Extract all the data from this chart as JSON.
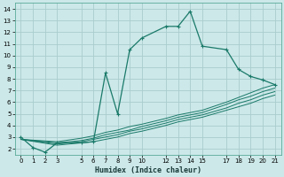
{
  "bg_color": "#cce8e8",
  "grid_color": "#aacccc",
  "line_color": "#1a7a6a",
  "xlabel": "Humidex (Indice chaleur)",
  "xlim": [
    -0.5,
    21.5
  ],
  "ylim": [
    1.5,
    14.5
  ],
  "xticks": [
    0,
    1,
    2,
    3,
    5,
    6,
    7,
    8,
    9,
    10,
    12,
    13,
    14,
    15,
    17,
    18,
    19,
    20,
    21
  ],
  "yticks": [
    2,
    3,
    4,
    5,
    6,
    7,
    8,
    9,
    10,
    11,
    12,
    13,
    14
  ],
  "main_line": {
    "x": [
      0,
      1,
      2,
      3,
      5,
      6,
      7,
      8,
      9,
      10,
      12,
      13,
      14,
      15,
      17,
      18,
      19,
      20,
      21
    ],
    "y": [
      3.0,
      2.1,
      1.7,
      2.5,
      2.5,
      2.6,
      8.5,
      5.0,
      10.5,
      11.5,
      12.5,
      12.5,
      13.8,
      10.8,
      10.5,
      8.8,
      8.2,
      7.9,
      7.5
    ]
  },
  "linear_lines": [
    {
      "x": [
        0,
        3,
        5,
        6,
        7,
        8,
        9,
        10,
        12,
        13,
        14,
        15,
        17,
        18,
        19,
        20,
        21
      ],
      "y": [
        2.8,
        2.6,
        2.9,
        3.1,
        3.4,
        3.6,
        3.9,
        4.1,
        4.6,
        4.9,
        5.1,
        5.3,
        6.0,
        6.4,
        6.8,
        7.2,
        7.5
      ]
    },
    {
      "x": [
        0,
        3,
        5,
        6,
        7,
        8,
        9,
        10,
        12,
        13,
        14,
        15,
        17,
        18,
        19,
        20,
        21
      ],
      "y": [
        2.8,
        2.5,
        2.7,
        2.9,
        3.2,
        3.4,
        3.6,
        3.9,
        4.4,
        4.7,
        4.9,
        5.1,
        5.8,
        6.2,
        6.5,
        6.9,
        7.2
      ]
    },
    {
      "x": [
        0,
        3,
        5,
        6,
        7,
        8,
        9,
        10,
        12,
        13,
        14,
        15,
        17,
        18,
        19,
        20,
        21
      ],
      "y": [
        2.8,
        2.4,
        2.6,
        2.8,
        3.0,
        3.2,
        3.5,
        3.7,
        4.2,
        4.5,
        4.7,
        4.9,
        5.5,
        5.9,
        6.2,
        6.6,
        6.9
      ]
    },
    {
      "x": [
        0,
        3,
        5,
        6,
        7,
        8,
        9,
        10,
        12,
        13,
        14,
        15,
        17,
        18,
        19,
        20,
        21
      ],
      "y": [
        2.8,
        2.3,
        2.5,
        2.6,
        2.8,
        3.0,
        3.3,
        3.5,
        4.0,
        4.3,
        4.5,
        4.7,
        5.3,
        5.6,
        5.9,
        6.3,
        6.6
      ]
    }
  ]
}
